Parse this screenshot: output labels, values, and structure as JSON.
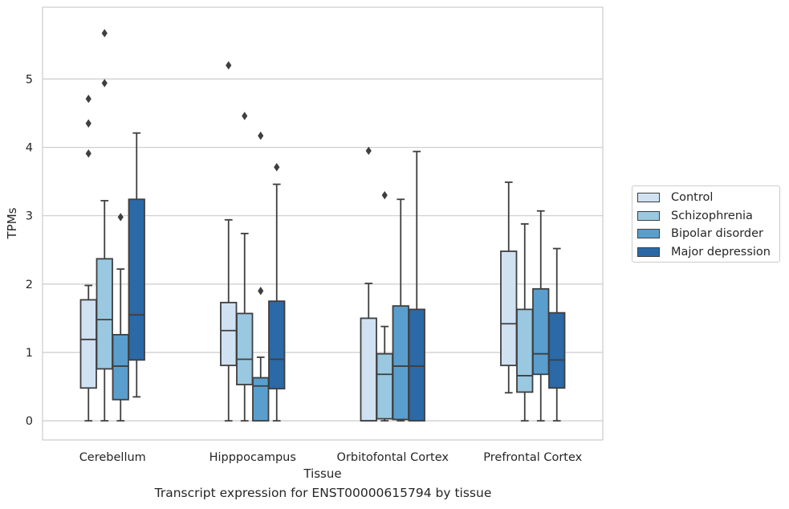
{
  "chart_data": {
    "type": "boxplot",
    "title": "",
    "xlabel": "Tissue",
    "ylabel": "TPMs",
    "ylim": [
      -0.28,
      6.05
    ],
    "yticks": [
      0,
      1,
      2,
      3,
      4,
      5
    ],
    "grid": "horizontal",
    "legend_position": "right",
    "categories": [
      "Cerebellum",
      "Hipppocampus",
      "Orbitofontal Cortex",
      "Prefrontal Cortex"
    ],
    "series": [
      {
        "name": "Control",
        "color": "#d0e1f2",
        "boxes": [
          {
            "whislo": 0.0,
            "q1": 0.48,
            "med": 1.19,
            "q3": 1.77,
            "whishi": 1.98,
            "fliers": [
              3.91,
              4.35,
              4.71
            ]
          },
          {
            "whislo": 0.0,
            "q1": 0.81,
            "med": 1.32,
            "q3": 1.73,
            "whishi": 2.94,
            "fliers": [
              5.2
            ]
          },
          {
            "whislo": 0.0,
            "q1": 0.0,
            "med": 0.0,
            "q3": 1.5,
            "whishi": 2.01,
            "fliers": [
              3.95
            ]
          },
          {
            "whislo": 0.41,
            "q1": 0.81,
            "med": 1.42,
            "q3": 2.48,
            "whishi": 3.49,
            "fliers": []
          }
        ]
      },
      {
        "name": "Schizophrenia",
        "color": "#9ac8e0",
        "boxes": [
          {
            "whislo": 0.0,
            "q1": 0.76,
            "med": 1.48,
            "q3": 2.37,
            "whishi": 3.22,
            "fliers": [
              4.94,
              5.67
            ]
          },
          {
            "whislo": 0.0,
            "q1": 0.53,
            "med": 0.9,
            "q3": 1.57,
            "whishi": 2.74,
            "fliers": [
              4.46
            ]
          },
          {
            "whislo": 0.0,
            "q1": 0.03,
            "med": 0.68,
            "q3": 0.98,
            "whishi": 1.38,
            "fliers": [
              3.3
            ]
          },
          {
            "whislo": 0.0,
            "q1": 0.42,
            "med": 0.66,
            "q3": 1.63,
            "whishi": 2.88,
            "fliers": []
          }
        ]
      },
      {
        "name": "Bipolar disorder",
        "color": "#5a9ecd",
        "boxes": [
          {
            "whislo": 0.0,
            "q1": 0.31,
            "med": 0.8,
            "q3": 1.26,
            "whishi": 2.22,
            "fliers": [
              2.98
            ]
          },
          {
            "whislo": 0.0,
            "q1": 0.0,
            "med": 0.51,
            "q3": 0.63,
            "whishi": 0.93,
            "fliers": [
              1.9,
              4.17
            ]
          },
          {
            "whislo": 0.0,
            "q1": 0.02,
            "med": 0.8,
            "q3": 1.68,
            "whishi": 3.24,
            "fliers": []
          },
          {
            "whislo": 0.0,
            "q1": 0.68,
            "med": 0.98,
            "q3": 1.93,
            "whishi": 3.07,
            "fliers": []
          }
        ]
      },
      {
        "name": "Major depression",
        "color": "#2b69a7",
        "boxes": [
          {
            "whislo": 0.35,
            "q1": 0.89,
            "med": 1.55,
            "q3": 3.24,
            "whishi": 4.21,
            "fliers": []
          },
          {
            "whislo": 0.0,
            "q1": 0.47,
            "med": 0.9,
            "q3": 1.75,
            "whishi": 3.46,
            "fliers": [
              3.71
            ]
          },
          {
            "whislo": 0.0,
            "q1": 0.0,
            "med": 0.8,
            "q3": 1.63,
            "whishi": 3.94,
            "fliers": []
          },
          {
            "whislo": 0.0,
            "q1": 0.48,
            "med": 0.89,
            "q3": 1.58,
            "whishi": 2.52,
            "fliers": []
          }
        ]
      }
    ]
  },
  "caption": "Transcript expression for ENST00000615794 by tissue"
}
